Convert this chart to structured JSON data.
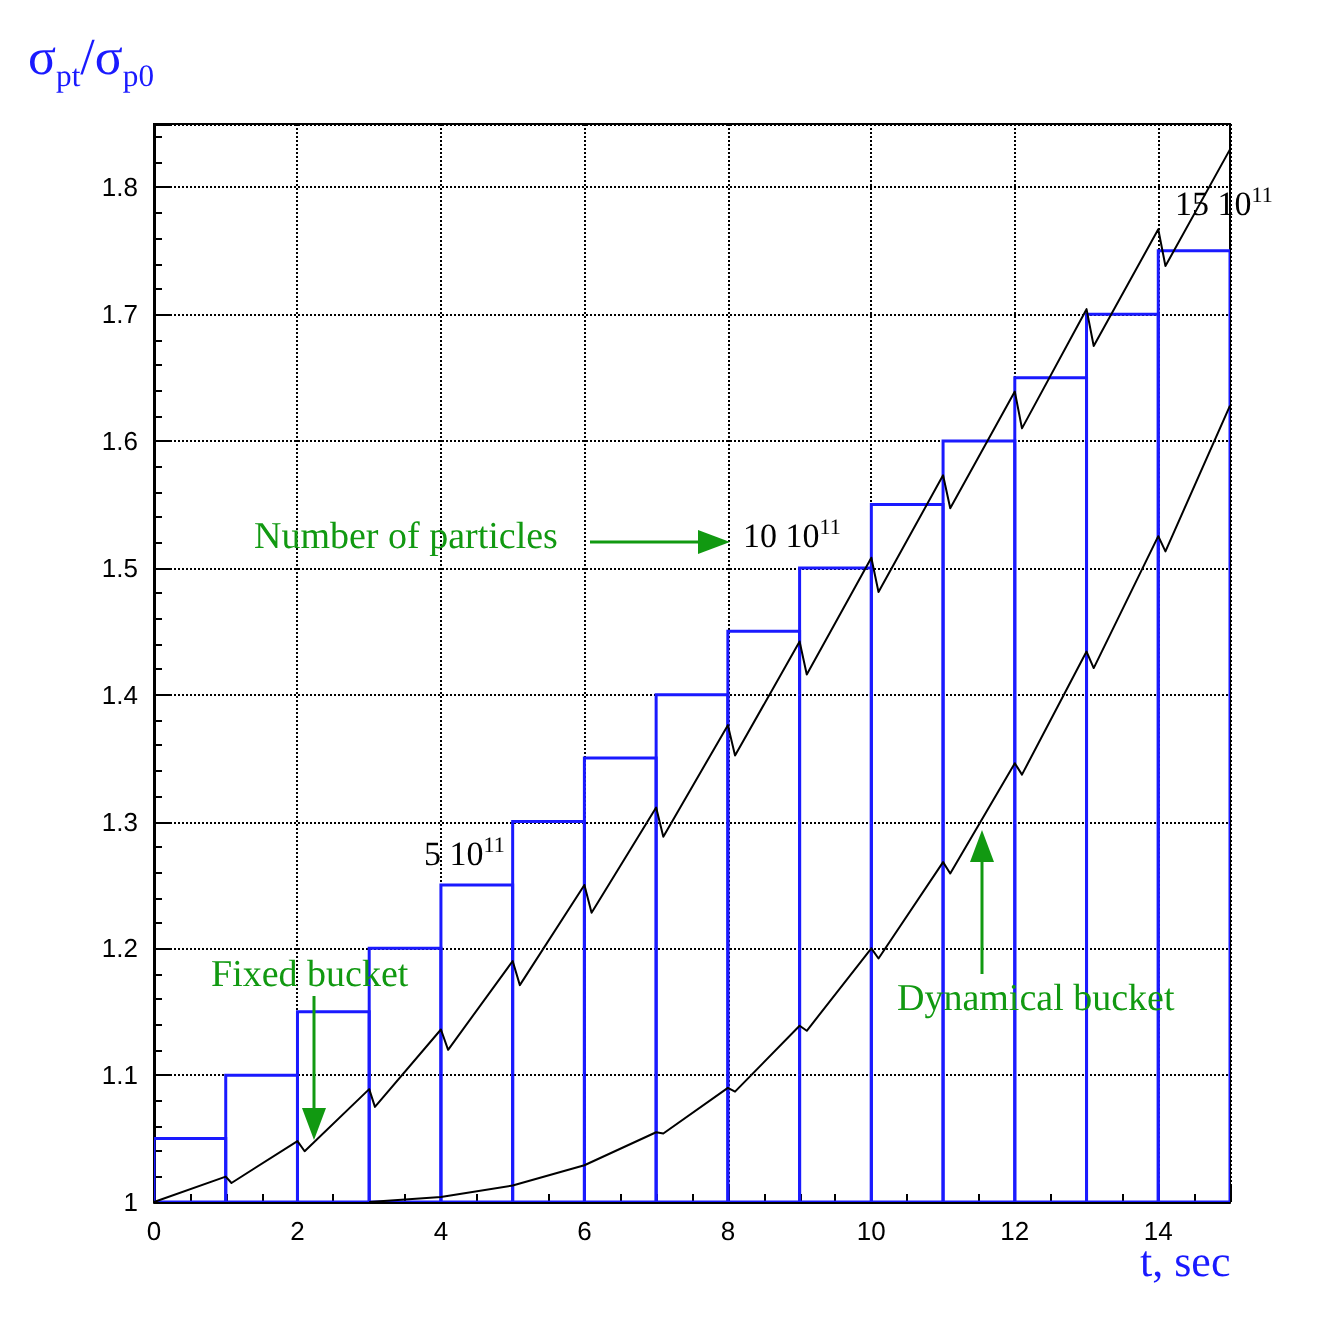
{
  "chart_data": {
    "type": "histogram",
    "xlabel": "t, sec",
    "ylabel": "σ$_{pt}$/σ$_{p0}$",
    "xlim": [
      0,
      15
    ],
    "xticks": [
      0,
      2,
      4,
      6,
      8,
      10,
      12,
      14
    ],
    "ylim": [
      1,
      1.85
    ],
    "yticks": [
      1,
      1.1,
      1.2,
      1.3,
      1.4,
      1.5,
      1.6,
      1.7,
      1.8
    ],
    "grid": true,
    "marker": "none",
    "line_style": "solid",
    "series": [
      {
        "color": "#1a1aff",
        "bins": [
          0,
          1,
          2,
          3,
          4,
          5,
          6,
          7,
          8,
          9,
          10,
          11,
          12,
          13,
          14,
          15
        ],
        "values": [
          1.05,
          1.1,
          1.15,
          1.2,
          1.25,
          1.3,
          1.35,
          1.4,
          1.45,
          1.5,
          1.55,
          1.6,
          1.65,
          1.7,
          1.75
        ]
      },
      {
        "type": "line",
        "color": "#000000",
        "x": [
          0,
          1,
          1.08,
          2,
          2.1,
          3,
          3.08,
          4,
          4.1,
          5,
          5.1,
          6,
          6.1,
          7,
          7.1,
          8,
          8.1,
          9,
          9.1,
          10,
          10.1,
          11,
          11.1,
          12,
          12.1,
          13,
          13.1,
          14,
          14.1,
          15
        ],
        "values": [
          1.0,
          1.02,
          1.015,
          1.048,
          1.04,
          1.089,
          1.075,
          1.136,
          1.12,
          1.19,
          1.171,
          1.25,
          1.228,
          1.311,
          1.288,
          1.376,
          1.352,
          1.442,
          1.416,
          1.508,
          1.481,
          1.573,
          1.547,
          1.639,
          1.61,
          1.704,
          1.675,
          1.767,
          1.738,
          1.83
        ]
      },
      {
        "type": "line",
        "color": "#000000",
        "x": [
          3,
          4,
          5,
          6,
          7,
          7.1,
          8,
          8.1,
          9,
          9.1,
          10,
          10.1,
          11,
          11.1,
          12,
          12.1,
          13,
          13.1,
          14,
          14.1,
          15
        ],
        "values": [
          1.0,
          1.004,
          1.013,
          1.029,
          1.055,
          1.054,
          1.09,
          1.087,
          1.139,
          1.135,
          1.2,
          1.192,
          1.268,
          1.259,
          1.346,
          1.337,
          1.434,
          1.421,
          1.525,
          1.513,
          1.628
        ]
      }
    ],
    "annotations": [
      "5 10$^{11}$",
      "10 10$^{11}$",
      "15 10$^{11}$",
      "Number of particles",
      "Fixed bucket",
      "Dynamical bucket"
    ]
  }
}
